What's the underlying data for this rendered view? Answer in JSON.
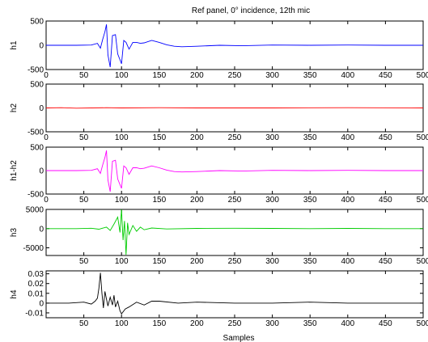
{
  "chart_data": {
    "type": "line",
    "title": "Ref panel, 0° incidence, 12th mic",
    "xlabel": "Samples",
    "xlim": [
      0,
      500
    ],
    "grid": false,
    "subplots": [
      {
        "ylabel": "h1",
        "ylim": [
          -500,
          500
        ],
        "xticks": [
          "0",
          "50",
          "100",
          "150",
          "200",
          "250",
          "300",
          "350",
          "400",
          "450",
          "500"
        ],
        "yticks": [
          {
            "v": -500,
            "t": "-500"
          },
          {
            "v": 0,
            "t": "0"
          },
          {
            "v": 500,
            "t": "500"
          }
        ],
        "color": "#0000ff",
        "x": [
          0,
          40,
          60,
          68,
          72,
          75,
          78,
          80,
          82,
          85,
          88,
          92,
          95,
          98,
          100,
          103,
          106,
          110,
          115,
          120,
          125,
          130,
          140,
          150,
          160,
          170,
          180,
          200,
          230,
          260,
          300,
          350,
          400,
          450,
          500
        ],
        "y": [
          0,
          0,
          5,
          40,
          -60,
          120,
          280,
          430,
          -200,
          -450,
          200,
          220,
          -180,
          -300,
          -380,
          100,
          60,
          -80,
          60,
          60,
          40,
          50,
          100,
          60,
          10,
          -20,
          -30,
          -20,
          0,
          -10,
          5,
          0,
          5,
          0,
          0
        ]
      },
      {
        "ylabel": "h2",
        "ylim": [
          -500,
          500
        ],
        "xticks": [
          "0",
          "50",
          "100",
          "150",
          "200",
          "250",
          "300",
          "350",
          "400",
          "450",
          "500"
        ],
        "yticks": [
          {
            "v": -500,
            "t": "-500"
          },
          {
            "v": 0,
            "t": "0"
          },
          {
            "v": 500,
            "t": "500"
          }
        ],
        "color": "#ff0000",
        "x": [
          0,
          20,
          40,
          80,
          100,
          150,
          200,
          300,
          400,
          500
        ],
        "y": [
          0,
          5,
          -5,
          5,
          0,
          5,
          0,
          0,
          5,
          0
        ]
      },
      {
        "ylabel": "h1-h2",
        "ylim": [
          -500,
          500
        ],
        "xticks": [
          "0",
          "50",
          "100",
          "150",
          "200",
          "250",
          "300",
          "350",
          "400",
          "450",
          "500"
        ],
        "yticks": [
          {
            "v": -500,
            "t": "-500"
          },
          {
            "v": 0,
            "t": "0"
          },
          {
            "v": 500,
            "t": "500"
          }
        ],
        "color": "#ff00ff",
        "x": [
          0,
          40,
          60,
          68,
          72,
          75,
          78,
          80,
          82,
          85,
          88,
          92,
          95,
          98,
          100,
          103,
          106,
          110,
          115,
          120,
          125,
          130,
          140,
          150,
          160,
          170,
          180,
          200,
          230,
          260,
          300,
          350,
          400,
          450,
          500
        ],
        "y": [
          0,
          0,
          5,
          40,
          -60,
          120,
          280,
          430,
          -200,
          -450,
          200,
          220,
          -180,
          -300,
          -380,
          100,
          60,
          -80,
          60,
          60,
          40,
          50,
          100,
          60,
          10,
          -20,
          -30,
          -20,
          0,
          -10,
          5,
          0,
          5,
          0,
          0
        ]
      },
      {
        "ylabel": "h3",
        "ylim": [
          -7000,
          5000
        ],
        "xticks": [
          "50",
          "100",
          "150",
          "200",
          "250",
          "300",
          "350",
          "400",
          "450",
          "500"
        ],
        "yticks": [
          {
            "v": -5000,
            "t": "-5000"
          },
          {
            "v": 0,
            "t": "0"
          },
          {
            "v": 5000,
            "t": "5000"
          }
        ],
        "color": "#00cc00",
        "x": [
          0,
          40,
          60,
          70,
          80,
          85,
          90,
          95,
          98,
          100,
          102,
          104,
          106,
          108,
          110,
          115,
          120,
          125,
          130,
          140,
          160,
          200,
          250,
          300,
          350,
          400,
          450,
          500
        ],
        "y": [
          0,
          0,
          100,
          -150,
          400,
          -500,
          1200,
          3000,
          -1000,
          5000,
          -3000,
          2000,
          -6800,
          1500,
          -1500,
          800,
          -700,
          400,
          -300,
          150,
          -100,
          50,
          100,
          50,
          0,
          50,
          0,
          0
        ]
      },
      {
        "ylabel": "h4",
        "ylim": [
          -0.015,
          0.033
        ],
        "xticks": [
          "50",
          "100",
          "150",
          "200",
          "250",
          "300",
          "350",
          "400",
          "450",
          "500"
        ],
        "yticks": [
          {
            "v": -0.01,
            "t": "-0.01"
          },
          {
            "v": 0,
            "t": "0"
          },
          {
            "v": 0.01,
            "t": "0.01"
          },
          {
            "v": 0.02,
            "t": "0.02"
          },
          {
            "v": 0.03,
            "t": "0.03"
          }
        ],
        "color": "#000000",
        "x": [
          0,
          30,
          50,
          60,
          65,
          68,
          70,
          72,
          74,
          76,
          78,
          80,
          82,
          85,
          88,
          90,
          92,
          95,
          98,
          100,
          105,
          110,
          120,
          130,
          140,
          150,
          175,
          200,
          250,
          300,
          350,
          400,
          450,
          500
        ],
        "y": [
          0,
          0,
          0.001,
          -0.001,
          0.002,
          0.005,
          0.015,
          0.031,
          0.01,
          -0.005,
          0.012,
          0.004,
          -0.003,
          0.006,
          -0.002,
          0.008,
          -0.004,
          0.002,
          -0.008,
          -0.011,
          -0.006,
          -0.004,
          0.001,
          -0.002,
          0.002,
          0.002,
          0,
          0.001,
          0,
          0,
          0.001,
          0,
          0,
          0
        ]
      }
    ]
  }
}
